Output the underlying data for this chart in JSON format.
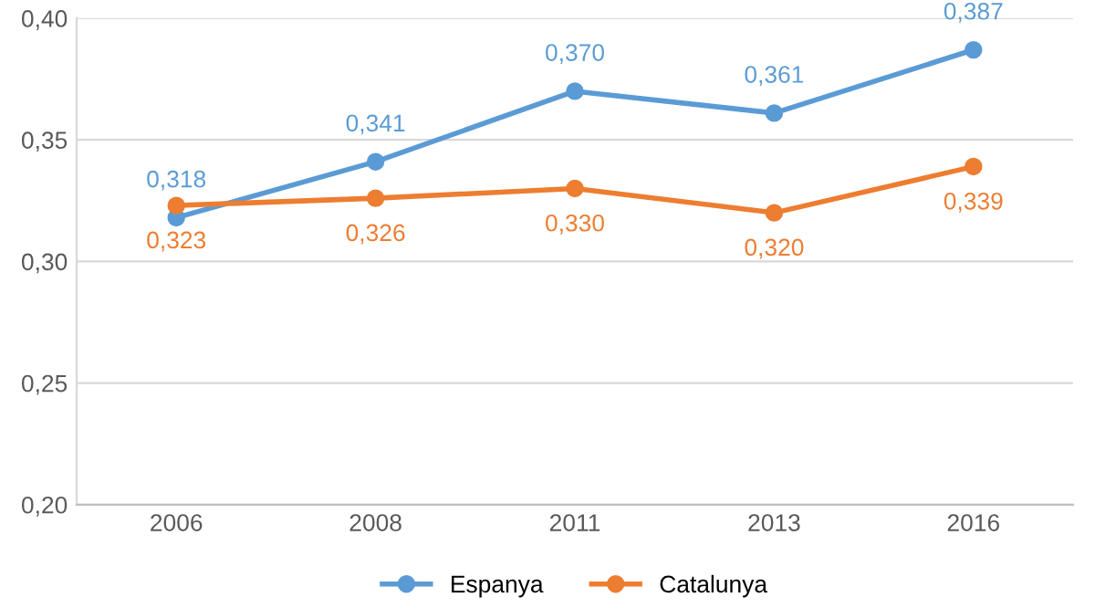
{
  "chart_data": {
    "type": "line",
    "categories": [
      "2006",
      "2008",
      "2011",
      "2013",
      "2016"
    ],
    "series": [
      {
        "name": "Espanya",
        "color": "#5b9bd5",
        "values": [
          0.318,
          0.341,
          0.37,
          0.361,
          0.387
        ],
        "value_labels": [
          "0,318",
          "0,341",
          "0,370",
          "0,361",
          "0,387"
        ]
      },
      {
        "name": "Catalunya",
        "color": "#ed7d31",
        "values": [
          0.323,
          0.326,
          0.33,
          0.32,
          0.339
        ],
        "value_labels": [
          "0,323",
          "0,326",
          "0,330",
          "0,320",
          "0,339"
        ]
      }
    ],
    "ylim": [
      0.2,
      0.4
    ],
    "yticks": [
      {
        "value": 0.2,
        "label": "0,20"
      },
      {
        "value": 0.25,
        "label": "0,25"
      },
      {
        "value": 0.3,
        "label": "0,30"
      },
      {
        "value": 0.35,
        "label": "0,35"
      },
      {
        "value": 0.4,
        "label": "0,40"
      }
    ],
    "grid": "y",
    "legend": "bottom",
    "marker": "circle",
    "line_style": "solid"
  }
}
